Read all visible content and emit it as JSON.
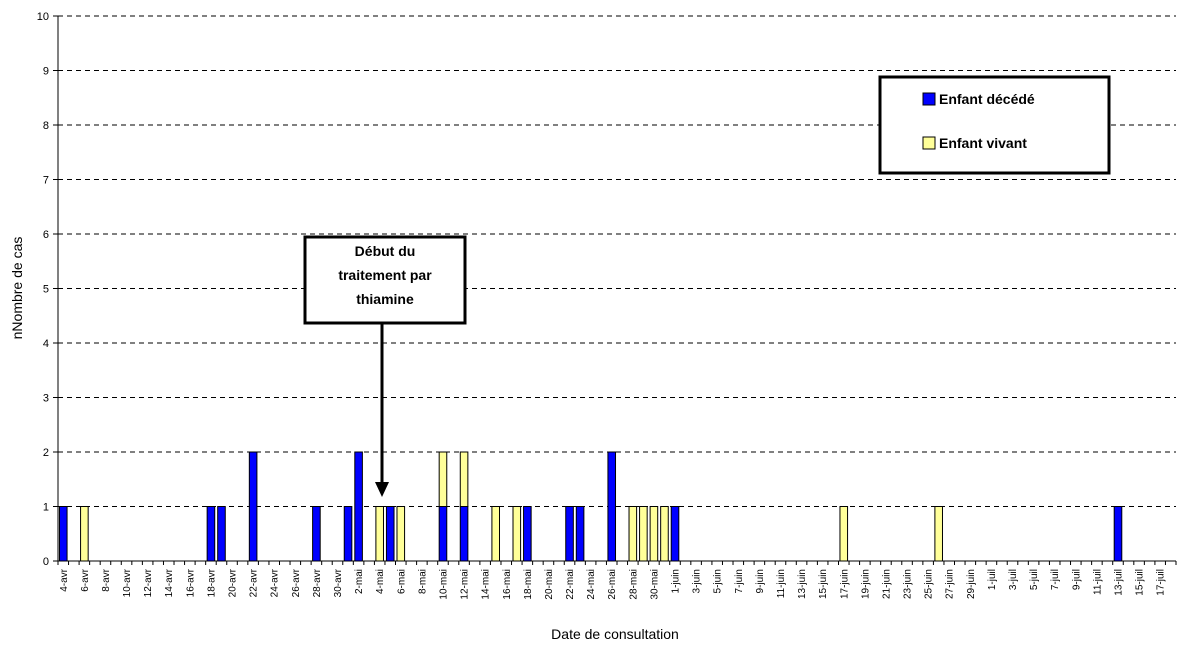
{
  "chart_data": {
    "type": "bar",
    "stacked": true,
    "xlabel": "Date de consultation",
    "ylabel": "nNombre de cas",
    "ylim": [
      0,
      10
    ],
    "yticks": [
      0,
      1,
      2,
      3,
      4,
      5,
      6,
      7,
      8,
      9,
      10
    ],
    "grid": "horizontal dashed",
    "legend_position": "top-right",
    "categories": [
      "4-avr",
      "5-avr",
      "6-avr",
      "7-avr",
      "8-avr",
      "9-avr",
      "10-avr",
      "11-avr",
      "12-avr",
      "13-avr",
      "14-avr",
      "15-avr",
      "16-avr",
      "17-avr",
      "18-avr",
      "19-avr",
      "20-avr",
      "21-avr",
      "22-avr",
      "23-avr",
      "24-avr",
      "25-avr",
      "26-avr",
      "27-avr",
      "28-avr",
      "29-avr",
      "30-avr",
      "1-mai",
      "2-mai",
      "3-mai",
      "4-mai",
      "5-mai",
      "6-mai",
      "7-mai",
      "8-mai",
      "9-mai",
      "10-mai",
      "11-mai",
      "12-mai",
      "13-mai",
      "14-mai",
      "15-mai",
      "16-mai",
      "17-mai",
      "18-mai",
      "19-mai",
      "20-mai",
      "21-mai",
      "22-mai",
      "23-mai",
      "24-mai",
      "25-mai",
      "26-mai",
      "27-mai",
      "28-mai",
      "29-mai",
      "30-mai",
      "31-mai",
      "1-juin",
      "2-juin",
      "3-juin",
      "4-juin",
      "5-juin",
      "6-juin",
      "7-juin",
      "8-juin",
      "9-juin",
      "10-juin",
      "11-juin",
      "12-juin",
      "13-juin",
      "14-juin",
      "15-juin",
      "16-juin",
      "17-juin",
      "18-juin",
      "19-juin",
      "20-juin",
      "21-juin",
      "22-juin",
      "23-juin",
      "24-juin",
      "25-juin",
      "26-juin",
      "27-juin",
      "28-juin",
      "29-juin",
      "30-juin",
      "1-juil",
      "2-juil",
      "3-juil",
      "4-juil",
      "5-juil",
      "6-juil",
      "7-juil",
      "8-juil",
      "9-juil",
      "10-juil",
      "11-juil",
      "12-juil",
      "13-juil",
      "14-juil",
      "15-juil",
      "16-juil",
      "17-juil",
      "18-juil"
    ],
    "tick_labels": [
      "4-avr",
      "6-avr",
      "8-avr",
      "10-avr",
      "12-avr",
      "14-avr",
      "16-avr",
      "18-avr",
      "20-avr",
      "22-avr",
      "24-avr",
      "26-avr",
      "28-avr",
      "30-avr",
      "2-mai",
      "4-mai",
      "6-mai",
      "8-mai",
      "10-mai",
      "12-mai",
      "14-mai",
      "16-mai",
      "18-mai",
      "20-mai",
      "22-mai",
      "24-mai",
      "26-mai",
      "28-mai",
      "30-mai",
      "1-juin",
      "3-juin",
      "5-juin",
      "7-juin",
      "9-juin",
      "11-juin",
      "13-juin",
      "15-juin",
      "17-juin",
      "19-juin",
      "21-juin",
      "23-juin",
      "25-juin",
      "27-juin",
      "29-juin",
      "1-juil",
      "3-juil",
      "5-juil",
      "7-juil",
      "9-juil",
      "11-juil",
      "13-juil",
      "15-juil",
      "17-juil"
    ],
    "series": [
      {
        "name": "Enfant décédé",
        "color": "#0000ff",
        "values": [
          1,
          0,
          0,
          0,
          0,
          0,
          0,
          0,
          0,
          0,
          0,
          0,
          0,
          0,
          1,
          1,
          0,
          0,
          2,
          0,
          0,
          0,
          0,
          0,
          1,
          0,
          0,
          1,
          2,
          0,
          0,
          1,
          0,
          0,
          0,
          0,
          1,
          0,
          1,
          0,
          0,
          0,
          0,
          0,
          1,
          0,
          0,
          0,
          1,
          1,
          0,
          0,
          2,
          0,
          0,
          0,
          0,
          0,
          1,
          0,
          0,
          0,
          0,
          0,
          0,
          0,
          0,
          0,
          0,
          0,
          0,
          0,
          0,
          0,
          0,
          0,
          0,
          0,
          0,
          0,
          0,
          0,
          0,
          0,
          0,
          0,
          0,
          0,
          0,
          0,
          0,
          0,
          0,
          0,
          0,
          0,
          0,
          0,
          0,
          0,
          1,
          0,
          0,
          0,
          0,
          0
        ]
      },
      {
        "name": "Enfant vivant",
        "color": "#ffff99",
        "values": [
          0,
          0,
          1,
          0,
          0,
          0,
          0,
          0,
          0,
          0,
          0,
          0,
          0,
          0,
          0,
          0,
          0,
          0,
          0,
          0,
          0,
          0,
          0,
          0,
          0,
          0,
          0,
          0,
          0,
          0,
          1,
          0,
          1,
          0,
          0,
          0,
          1,
          0,
          1,
          0,
          0,
          1,
          0,
          1,
          0,
          0,
          0,
          0,
          0,
          0,
          0,
          0,
          0,
          0,
          1,
          1,
          1,
          1,
          0,
          0,
          0,
          0,
          0,
          0,
          0,
          0,
          0,
          0,
          0,
          0,
          0,
          0,
          0,
          0,
          1,
          0,
          0,
          0,
          0,
          0,
          0,
          0,
          0,
          1,
          0,
          0,
          0,
          0,
          0,
          0,
          0,
          0,
          0,
          0,
          0,
          0,
          0,
          0,
          0,
          0,
          0,
          0,
          0,
          0,
          0,
          0
        ]
      }
    ],
    "annotation": {
      "lines": [
        "Début du",
        "traitement par",
        "thiamine"
      ],
      "points_to": "4-mai"
    }
  }
}
